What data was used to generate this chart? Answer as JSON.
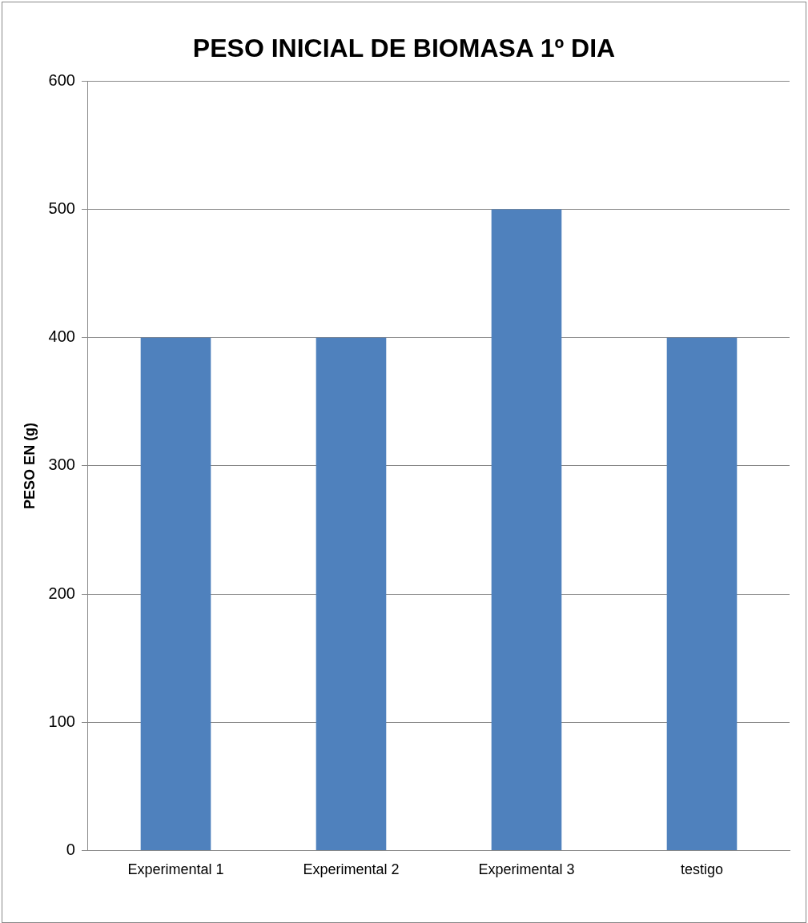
{
  "chart_data": {
    "type": "bar",
    "title": "PESO INICIAL DE BIOMASA 1º DIA",
    "ylabel": "PESO EN (g)",
    "categories": [
      "Experimental 1",
      "Experimental 2",
      "Experimental 3",
      "testigo"
    ],
    "values": [
      400,
      400,
      500,
      400
    ],
    "color": "#4f81bd",
    "ylim": [
      0,
      600
    ],
    "yticks": [
      0,
      100,
      200,
      300,
      400,
      500,
      600
    ],
    "grid": "y",
    "legend": false
  }
}
